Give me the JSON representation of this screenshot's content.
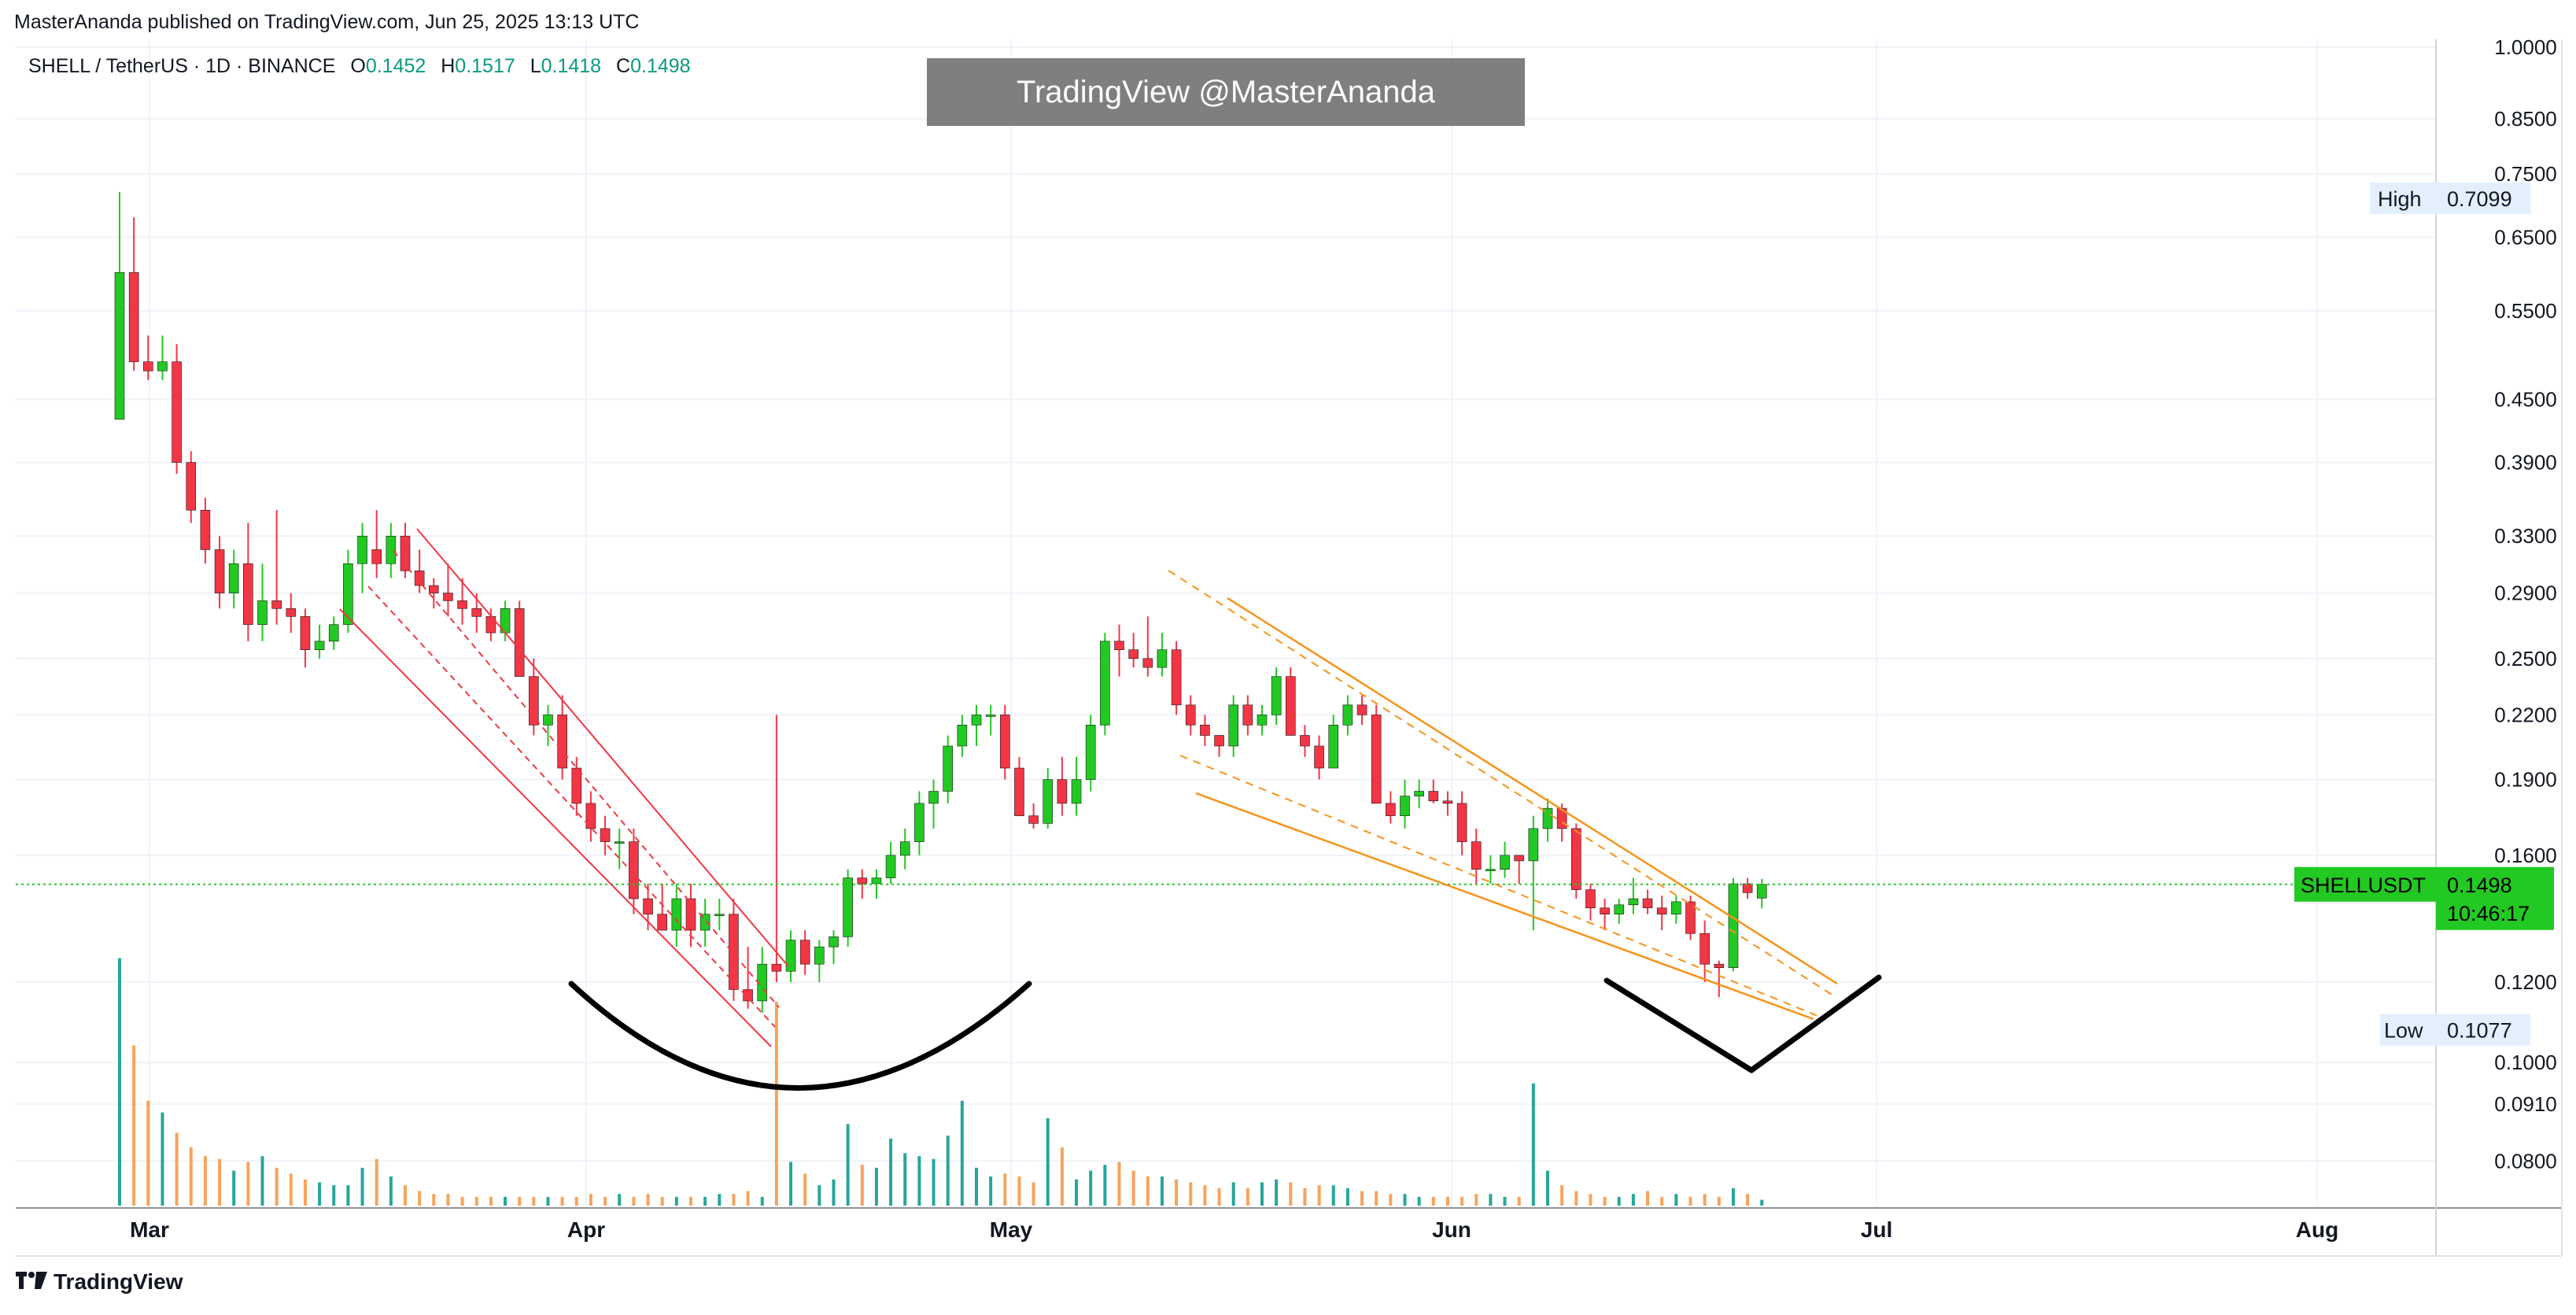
{
  "header": {
    "publisher": "MasterAnanda published on TradingView.com, Jun 25, 2025 13:13 UTC"
  },
  "symbol_bar": {
    "symbol": "SHELL / TetherUS · 1D · BINANCE",
    "open_label": "O",
    "open": "0.1452",
    "high_label": "H",
    "high": "0.1517",
    "low_label": "L",
    "low": "0.1418",
    "close_label": "C",
    "close": "0.1498"
  },
  "watermark": "TradingView @MasterAnanda",
  "brand": {
    "logo_icon": "tradingview-logo-icon",
    "name": "TradingView"
  },
  "colors": {
    "up": "#22c922",
    "down": "#f23645",
    "vol_up": "#26a69a",
    "vol_down": "#f7a35c",
    "trend_red": "#f23645",
    "trend_orange": "#f7931a",
    "price_line": "#22c922",
    "label_bg": "#e3effd"
  },
  "price_axis": {
    "ticks": [
      "1.0000",
      "0.8500",
      "0.7500",
      "0.6500",
      "0.5500",
      "0.4500",
      "0.3900",
      "0.3300",
      "0.2900",
      "0.2500",
      "0.2200",
      "0.1900",
      "0.1600",
      "0.1200",
      "0.1000",
      "0.0910",
      "0.0800"
    ],
    "high_label": "High",
    "high_value": "0.7099",
    "low_label": "Low",
    "low_value": "0.1077",
    "current_symbol": "SHELLUSDT",
    "current_value": "0.1498",
    "countdown": "10:46:17"
  },
  "chart_data": {
    "type": "candlestick",
    "title": "SHELL / TetherUS · 1D · BINANCE",
    "scale": "log",
    "ylim": [
      0.076,
      1.0
    ],
    "x_ticks": [
      "Mar",
      "Apr",
      "May",
      "Jun",
      "Jul",
      "Aug"
    ],
    "grid": true,
    "last_price": 0.1498,
    "candles": [
      {
        "o": 0.43,
        "h": 0.72,
        "l": 0.43,
        "c": 0.6,
        "v": 0.85
      },
      {
        "o": 0.6,
        "h": 0.68,
        "l": 0.48,
        "c": 0.49,
        "v": 0.55
      },
      {
        "o": 0.49,
        "h": 0.52,
        "l": 0.47,
        "c": 0.48,
        "v": 0.36
      },
      {
        "o": 0.48,
        "h": 0.52,
        "l": 0.47,
        "c": 0.49,
        "v": 0.32
      },
      {
        "o": 0.49,
        "h": 0.51,
        "l": 0.38,
        "c": 0.39,
        "v": 0.25
      },
      {
        "o": 0.39,
        "h": 0.4,
        "l": 0.34,
        "c": 0.35,
        "v": 0.2
      },
      {
        "o": 0.35,
        "h": 0.36,
        "l": 0.31,
        "c": 0.32,
        "v": 0.17
      },
      {
        "o": 0.32,
        "h": 0.33,
        "l": 0.28,
        "c": 0.29,
        "v": 0.16
      },
      {
        "o": 0.29,
        "h": 0.32,
        "l": 0.28,
        "c": 0.31,
        "v": 0.12
      },
      {
        "o": 0.31,
        "h": 0.34,
        "l": 0.26,
        "c": 0.27,
        "v": 0.15
      },
      {
        "o": 0.27,
        "h": 0.31,
        "l": 0.26,
        "c": 0.285,
        "v": 0.17
      },
      {
        "o": 0.285,
        "h": 0.35,
        "l": 0.27,
        "c": 0.28,
        "v": 0.13
      },
      {
        "o": 0.28,
        "h": 0.29,
        "l": 0.265,
        "c": 0.275,
        "v": 0.11
      },
      {
        "o": 0.275,
        "h": 0.28,
        "l": 0.245,
        "c": 0.255,
        "v": 0.09
      },
      {
        "o": 0.255,
        "h": 0.27,
        "l": 0.25,
        "c": 0.26,
        "v": 0.08
      },
      {
        "o": 0.26,
        "h": 0.275,
        "l": 0.255,
        "c": 0.27,
        "v": 0.07
      },
      {
        "o": 0.27,
        "h": 0.32,
        "l": 0.265,
        "c": 0.31,
        "v": 0.07
      },
      {
        "o": 0.31,
        "h": 0.34,
        "l": 0.29,
        "c": 0.33,
        "v": 0.13
      },
      {
        "o": 0.32,
        "h": 0.35,
        "l": 0.3,
        "c": 0.31,
        "v": 0.16
      },
      {
        "o": 0.31,
        "h": 0.34,
        "l": 0.3,
        "c": 0.33,
        "v": 0.1
      },
      {
        "o": 0.33,
        "h": 0.34,
        "l": 0.3,
        "c": 0.305,
        "v": 0.07
      },
      {
        "o": 0.305,
        "h": 0.32,
        "l": 0.29,
        "c": 0.295,
        "v": 0.05
      },
      {
        "o": 0.295,
        "h": 0.3,
        "l": 0.28,
        "c": 0.29,
        "v": 0.04
      },
      {
        "o": 0.29,
        "h": 0.31,
        "l": 0.275,
        "c": 0.285,
        "v": 0.04
      },
      {
        "o": 0.285,
        "h": 0.3,
        "l": 0.27,
        "c": 0.28,
        "v": 0.03
      },
      {
        "o": 0.28,
        "h": 0.29,
        "l": 0.265,
        "c": 0.275,
        "v": 0.03
      },
      {
        "o": 0.275,
        "h": 0.28,
        "l": 0.26,
        "c": 0.265,
        "v": 0.03
      },
      {
        "o": 0.265,
        "h": 0.285,
        "l": 0.26,
        "c": 0.28,
        "v": 0.03
      },
      {
        "o": 0.28,
        "h": 0.285,
        "l": 0.24,
        "c": 0.24,
        "v": 0.03
      },
      {
        "o": 0.24,
        "h": 0.25,
        "l": 0.21,
        "c": 0.215,
        "v": 0.03
      },
      {
        "o": 0.215,
        "h": 0.225,
        "l": 0.205,
        "c": 0.22,
        "v": 0.03
      },
      {
        "o": 0.22,
        "h": 0.23,
        "l": 0.19,
        "c": 0.195,
        "v": 0.03
      },
      {
        "o": 0.195,
        "h": 0.2,
        "l": 0.175,
        "c": 0.18,
        "v": 0.03
      },
      {
        "o": 0.18,
        "h": 0.185,
        "l": 0.165,
        "c": 0.17,
        "v": 0.04
      },
      {
        "o": 0.17,
        "h": 0.175,
        "l": 0.16,
        "c": 0.165,
        "v": 0.03
      },
      {
        "o": 0.165,
        "h": 0.17,
        "l": 0.155,
        "c": 0.165,
        "v": 0.04
      },
      {
        "o": 0.165,
        "h": 0.17,
        "l": 0.14,
        "c": 0.145,
        "v": 0.03
      },
      {
        "o": 0.145,
        "h": 0.15,
        "l": 0.135,
        "c": 0.14,
        "v": 0.04
      },
      {
        "o": 0.14,
        "h": 0.15,
        "l": 0.135,
        "c": 0.135,
        "v": 0.03
      },
      {
        "o": 0.135,
        "h": 0.15,
        "l": 0.13,
        "c": 0.145,
        "v": 0.03
      },
      {
        "o": 0.145,
        "h": 0.15,
        "l": 0.13,
        "c": 0.135,
        "v": 0.03
      },
      {
        "o": 0.135,
        "h": 0.145,
        "l": 0.13,
        "c": 0.14,
        "v": 0.03
      },
      {
        "o": 0.14,
        "h": 0.145,
        "l": 0.135,
        "c": 0.14,
        "v": 0.04
      },
      {
        "o": 0.14,
        "h": 0.145,
        "l": 0.115,
        "c": 0.118,
        "v": 0.04
      },
      {
        "o": 0.118,
        "h": 0.13,
        "l": 0.113,
        "c": 0.115,
        "v": 0.05
      },
      {
        "o": 0.115,
        "h": 0.13,
        "l": 0.112,
        "c": 0.125,
        "v": 0.03
      },
      {
        "o": 0.125,
        "h": 0.22,
        "l": 0.12,
        "c": 0.123,
        "v": 0.7
      },
      {
        "o": 0.123,
        "h": 0.135,
        "l": 0.12,
        "c": 0.132,
        "v": 0.15
      },
      {
        "o": 0.132,
        "h": 0.135,
        "l": 0.122,
        "c": 0.125,
        "v": 0.11
      },
      {
        "o": 0.125,
        "h": 0.132,
        "l": 0.12,
        "c": 0.13,
        "v": 0.07
      },
      {
        "o": 0.13,
        "h": 0.135,
        "l": 0.125,
        "c": 0.133,
        "v": 0.09
      },
      {
        "o": 0.133,
        "h": 0.155,
        "l": 0.13,
        "c": 0.152,
        "v": 0.28
      },
      {
        "o": 0.152,
        "h": 0.155,
        "l": 0.145,
        "c": 0.15,
        "v": 0.14
      },
      {
        "o": 0.15,
        "h": 0.155,
        "l": 0.145,
        "c": 0.152,
        "v": 0.13
      },
      {
        "o": 0.152,
        "h": 0.165,
        "l": 0.15,
        "c": 0.16,
        "v": 0.23
      },
      {
        "o": 0.16,
        "h": 0.17,
        "l": 0.155,
        "c": 0.165,
        "v": 0.18
      },
      {
        "o": 0.165,
        "h": 0.185,
        "l": 0.16,
        "c": 0.18,
        "v": 0.17
      },
      {
        "o": 0.18,
        "h": 0.19,
        "l": 0.17,
        "c": 0.185,
        "v": 0.16
      },
      {
        "o": 0.185,
        "h": 0.21,
        "l": 0.18,
        "c": 0.205,
        "v": 0.24
      },
      {
        "o": 0.205,
        "h": 0.22,
        "l": 0.2,
        "c": 0.215,
        "v": 0.36
      },
      {
        "o": 0.215,
        "h": 0.225,
        "l": 0.205,
        "c": 0.22,
        "v": 0.13
      },
      {
        "o": 0.22,
        "h": 0.225,
        "l": 0.21,
        "c": 0.22,
        "v": 0.1
      },
      {
        "o": 0.22,
        "h": 0.225,
        "l": 0.19,
        "c": 0.195,
        "v": 0.11
      },
      {
        "o": 0.195,
        "h": 0.2,
        "l": 0.175,
        "c": 0.175,
        "v": 0.1
      },
      {
        "o": 0.175,
        "h": 0.18,
        "l": 0.17,
        "c": 0.172,
        "v": 0.08
      },
      {
        "o": 0.172,
        "h": 0.195,
        "l": 0.17,
        "c": 0.19,
        "v": 0.3
      },
      {
        "o": 0.19,
        "h": 0.2,
        "l": 0.175,
        "c": 0.18,
        "v": 0.2
      },
      {
        "o": 0.18,
        "h": 0.2,
        "l": 0.175,
        "c": 0.19,
        "v": 0.09
      },
      {
        "o": 0.19,
        "h": 0.22,
        "l": 0.185,
        "c": 0.215,
        "v": 0.12
      },
      {
        "o": 0.215,
        "h": 0.265,
        "l": 0.21,
        "c": 0.26,
        "v": 0.14
      },
      {
        "o": 0.26,
        "h": 0.27,
        "l": 0.24,
        "c": 0.255,
        "v": 0.15
      },
      {
        "o": 0.255,
        "h": 0.265,
        "l": 0.245,
        "c": 0.25,
        "v": 0.12
      },
      {
        "o": 0.25,
        "h": 0.275,
        "l": 0.24,
        "c": 0.245,
        "v": 0.1
      },
      {
        "o": 0.245,
        "h": 0.265,
        "l": 0.24,
        "c": 0.255,
        "v": 0.1
      },
      {
        "o": 0.255,
        "h": 0.26,
        "l": 0.22,
        "c": 0.225,
        "v": 0.09
      },
      {
        "o": 0.225,
        "h": 0.23,
        "l": 0.21,
        "c": 0.215,
        "v": 0.08
      },
      {
        "o": 0.215,
        "h": 0.22,
        "l": 0.205,
        "c": 0.21,
        "v": 0.07
      },
      {
        "o": 0.21,
        "h": 0.21,
        "l": 0.2,
        "c": 0.205,
        "v": 0.06
      },
      {
        "o": 0.205,
        "h": 0.23,
        "l": 0.2,
        "c": 0.225,
        "v": 0.08
      },
      {
        "o": 0.225,
        "h": 0.23,
        "l": 0.21,
        "c": 0.215,
        "v": 0.06
      },
      {
        "o": 0.215,
        "h": 0.225,
        "l": 0.21,
        "c": 0.22,
        "v": 0.08
      },
      {
        "o": 0.22,
        "h": 0.245,
        "l": 0.215,
        "c": 0.24,
        "v": 0.09
      },
      {
        "o": 0.24,
        "h": 0.245,
        "l": 0.21,
        "c": 0.21,
        "v": 0.08
      },
      {
        "o": 0.21,
        "h": 0.215,
        "l": 0.2,
        "c": 0.205,
        "v": 0.06
      },
      {
        "o": 0.205,
        "h": 0.21,
        "l": 0.19,
        "c": 0.195,
        "v": 0.07
      },
      {
        "o": 0.195,
        "h": 0.22,
        "l": 0.195,
        "c": 0.215,
        "v": 0.07
      },
      {
        "o": 0.215,
        "h": 0.23,
        "l": 0.21,
        "c": 0.225,
        "v": 0.06
      },
      {
        "o": 0.225,
        "h": 0.23,
        "l": 0.215,
        "c": 0.22,
        "v": 0.05
      },
      {
        "o": 0.22,
        "h": 0.225,
        "l": 0.18,
        "c": 0.18,
        "v": 0.05
      },
      {
        "o": 0.18,
        "h": 0.185,
        "l": 0.172,
        "c": 0.175,
        "v": 0.04
      },
      {
        "o": 0.175,
        "h": 0.19,
        "l": 0.17,
        "c": 0.183,
        "v": 0.04
      },
      {
        "o": 0.183,
        "h": 0.19,
        "l": 0.178,
        "c": 0.185,
        "v": 0.03
      },
      {
        "o": 0.185,
        "h": 0.19,
        "l": 0.18,
        "c": 0.181,
        "v": 0.03
      },
      {
        "o": 0.181,
        "h": 0.185,
        "l": 0.175,
        "c": 0.18,
        "v": 0.03
      },
      {
        "o": 0.18,
        "h": 0.185,
        "l": 0.16,
        "c": 0.165,
        "v": 0.03
      },
      {
        "o": 0.165,
        "h": 0.17,
        "l": 0.15,
        "c": 0.155,
        "v": 0.04
      },
      {
        "o": 0.155,
        "h": 0.16,
        "l": 0.15,
        "c": 0.155,
        "v": 0.04
      },
      {
        "o": 0.155,
        "h": 0.165,
        "l": 0.152,
        "c": 0.16,
        "v": 0.03
      },
      {
        "o": 0.16,
        "h": 0.16,
        "l": 0.15,
        "c": 0.158,
        "v": 0.03
      },
      {
        "o": 0.158,
        "h": 0.175,
        "l": 0.135,
        "c": 0.17,
        "v": 0.42
      },
      {
        "o": 0.17,
        "h": 0.182,
        "l": 0.165,
        "c": 0.178,
        "v": 0.12
      },
      {
        "o": 0.178,
        "h": 0.18,
        "l": 0.165,
        "c": 0.17,
        "v": 0.07
      },
      {
        "o": 0.17,
        "h": 0.172,
        "l": 0.145,
        "c": 0.148,
        "v": 0.05
      },
      {
        "o": 0.148,
        "h": 0.15,
        "l": 0.138,
        "c": 0.142,
        "v": 0.04
      },
      {
        "o": 0.142,
        "h": 0.145,
        "l": 0.135,
        "c": 0.14,
        "v": 0.03
      },
      {
        "o": 0.14,
        "h": 0.145,
        "l": 0.137,
        "c": 0.143,
        "v": 0.03
      },
      {
        "o": 0.143,
        "h": 0.152,
        "l": 0.14,
        "c": 0.145,
        "v": 0.04
      },
      {
        "o": 0.145,
        "h": 0.148,
        "l": 0.14,
        "c": 0.142,
        "v": 0.05
      },
      {
        "o": 0.142,
        "h": 0.146,
        "l": 0.135,
        "c": 0.14,
        "v": 0.03
      },
      {
        "o": 0.14,
        "h": 0.146,
        "l": 0.137,
        "c": 0.144,
        "v": 0.04
      },
      {
        "o": 0.144,
        "h": 0.146,
        "l": 0.132,
        "c": 0.134,
        "v": 0.03
      },
      {
        "o": 0.134,
        "h": 0.138,
        "l": 0.12,
        "c": 0.125,
        "v": 0.04
      },
      {
        "o": 0.125,
        "h": 0.126,
        "l": 0.116,
        "c": 0.124,
        "v": 0.03
      },
      {
        "o": 0.124,
        "h": 0.152,
        "l": 0.123,
        "c": 0.15,
        "v": 0.06
      },
      {
        "o": 0.15,
        "h": 0.152,
        "l": 0.145,
        "c": 0.147,
        "v": 0.04
      },
      {
        "o": 0.1452,
        "h": 0.1517,
        "l": 0.1418,
        "c": 0.1498,
        "v": 0.02
      }
    ]
  }
}
